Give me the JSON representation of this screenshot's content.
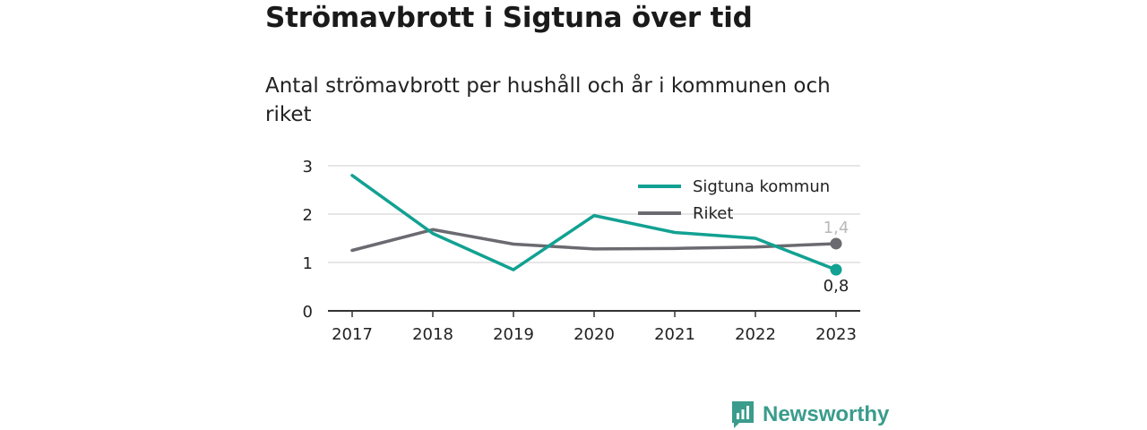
{
  "title": "Strömavbrott i Sigtuna över tid",
  "subtitle": "Antal strömavbrott per hushåll och år i kommunen och riket",
  "brand": {
    "name": "Newsworthy"
  },
  "colors": {
    "sigtuna": "#12a192",
    "riket": "#6b6a70",
    "grid": "#dddddd",
    "axis": "#333333",
    "brand": "#3a9c8c"
  },
  "chart_data": {
    "type": "line",
    "x": [
      "2017",
      "2018",
      "2019",
      "2020",
      "2021",
      "2022",
      "2023"
    ],
    "series": [
      {
        "name": "Sigtuna kommun",
        "values": [
          2.8,
          1.6,
          0.85,
          1.97,
          1.62,
          1.5,
          0.85
        ],
        "end_label": "0,8"
      },
      {
        "name": "Riket",
        "values": [
          1.25,
          1.68,
          1.38,
          1.28,
          1.29,
          1.32,
          1.39
        ],
        "end_label": "1,4"
      }
    ],
    "ylim": [
      0,
      3
    ],
    "yticks": [
      0,
      1,
      2,
      3
    ],
    "grid": true,
    "legend": "top-right",
    "xlabel": "",
    "ylabel": ""
  }
}
